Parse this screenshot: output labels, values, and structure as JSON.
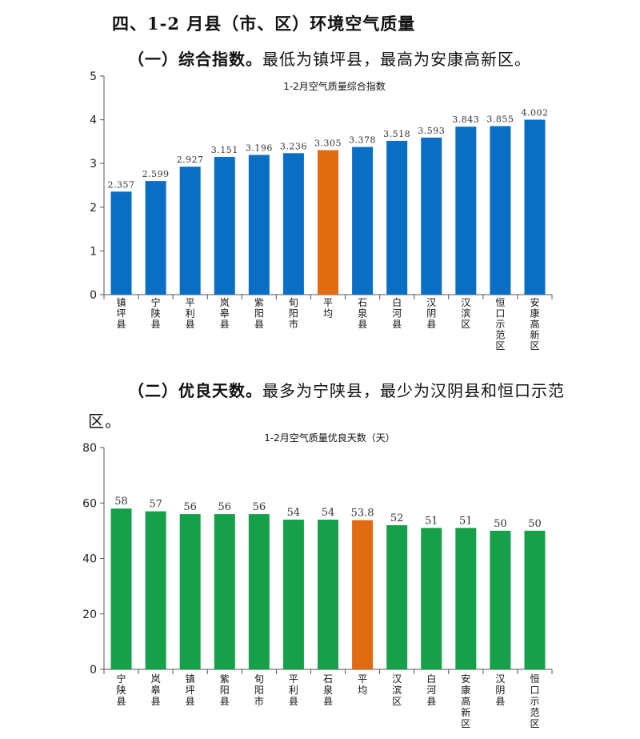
{
  "section_heading": "四、1-2 月县（市、区）环境空气质量",
  "part1": {
    "label": "（一）综合指数。",
    "text": "最低为镇坪县，最高为安康高新区。"
  },
  "part2": {
    "label": "（二）优良天数。",
    "text": "最多为宁陕县，最少为汉阴县和恒口示范",
    "text_cont": "区。"
  },
  "colors": {
    "blue": "#0a6fc4",
    "green": "#16a04a",
    "orange": "#e06b10",
    "axis": "#555555"
  },
  "chart_data": [
    {
      "type": "bar",
      "title": "1-2月空气质量综合指数",
      "categories": [
        "镇坪县",
        "宁陕县",
        "平利县",
        "岚皋县",
        "紫阳县",
        "旬阳市",
        "平均",
        "石泉县",
        "白河县",
        "汉阴县",
        "汉滨区",
        "恒口示范区",
        "安康高新区"
      ],
      "values": [
        2.357,
        2.599,
        2.927,
        3.151,
        3.196,
        3.236,
        3.305,
        3.378,
        3.518,
        3.593,
        3.843,
        3.855,
        4.002
      ],
      "value_labels": [
        "2.357",
        "2.599",
        "2.927",
        "3.151",
        "3.196",
        "3.236",
        "3.305",
        "3.378",
        "3.518",
        "3.593",
        "3.843",
        "3.855",
        "4.002"
      ],
      "highlight_category": "平均",
      "bar_color": "blue",
      "highlight_color": "orange",
      "ylim": [
        0,
        5
      ],
      "yticks": [
        "0",
        "1",
        "2",
        "3",
        "4",
        "5"
      ],
      "grid": false,
      "xlabel": "",
      "ylabel": ""
    },
    {
      "type": "bar",
      "title": "1-2月空气质量优良天数（天）",
      "categories": [
        "宁陕县",
        "岚皋县",
        "镇坪县",
        "紫阳县",
        "旬阳市",
        "平利县",
        "石泉县",
        "平均",
        "汉滨区",
        "白河县",
        "安康高新区",
        "汉阴县",
        "恒口示范区"
      ],
      "values": [
        58,
        57,
        56,
        56,
        56,
        54,
        54,
        53.8,
        52,
        51,
        51,
        50,
        50
      ],
      "value_labels": [
        "58",
        "57",
        "56",
        "56",
        "56",
        "54",
        "54",
        "53.8",
        "52",
        "51",
        "51",
        "50",
        "50"
      ],
      "highlight_category": "平均",
      "bar_color": "green",
      "highlight_color": "orange",
      "ylim": [
        0,
        80
      ],
      "yticks": [
        "0",
        "20",
        "40",
        "60",
        "80"
      ],
      "grid": false,
      "xlabel": "",
      "ylabel": ""
    }
  ]
}
